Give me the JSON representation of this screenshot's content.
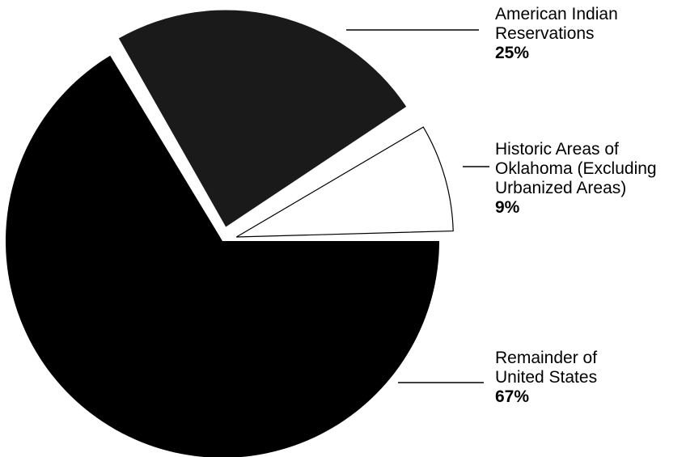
{
  "chart_data": {
    "type": "pie",
    "slices": [
      {
        "label": "American Indian\nReservations",
        "value": 25,
        "value_label": "25%",
        "color": "#1a1a1a",
        "exploded": true
      },
      {
        "label": "Historic Areas of\nOklahoma (Excluding\nUrbanized Areas)",
        "value": 9,
        "value_label": "9%",
        "color": "#ffffff",
        "exploded": true
      },
      {
        "label": "Remainder of\nUnited States",
        "value": 67,
        "value_label": "67%",
        "color": "#000000",
        "exploded": false
      }
    ]
  }
}
